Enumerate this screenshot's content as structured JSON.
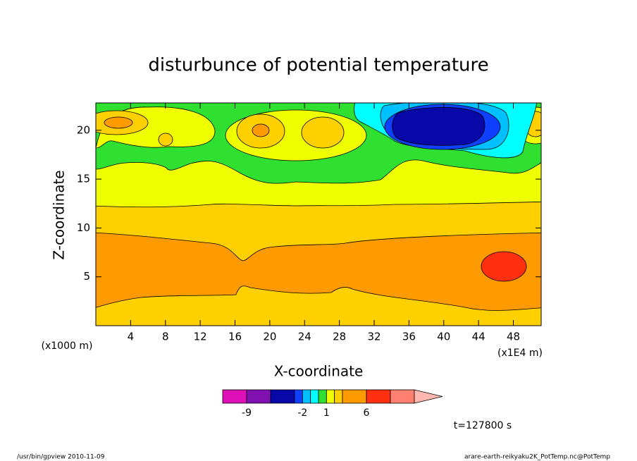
{
  "chart_data": {
    "type": "contour",
    "title": "disturbunce of potential temperature",
    "x_label": "X-coordinate",
    "y_label": "Z-coordinate",
    "x_unit_left": "(x1000 m)",
    "x_unit_right": "(x1E4 m)",
    "xlim": [
      0,
      51.2
    ],
    "xticks": [
      4,
      8,
      12,
      16,
      20,
      24,
      28,
      32,
      36,
      40,
      44,
      48
    ],
    "ylim": [
      0,
      22.8
    ],
    "yticks": [
      5,
      10,
      15,
      20
    ],
    "colorbar": {
      "levels": [
        -12,
        -9,
        -6,
        -3,
        -2,
        -1,
        0,
        1,
        2,
        3,
        6,
        9,
        12
      ],
      "colors": [
        "#e010b8",
        "#8010b0",
        "#0808a8",
        "#1040ff",
        "#00c0ff",
        "#00ffff",
        "#30e030",
        "#f0ff00",
        "#ffd000",
        "#ff9a00",
        "#ff3010",
        "#ff8070"
      ],
      "extend_color": "#ffb8b0",
      "ticks": [
        -9,
        -2,
        1,
        6
      ]
    },
    "time_label": "t=127800 s",
    "footer_left": "/usr/bin/gpview   2010-11-09",
    "footer_right": "arare-earth-reikyaku2K_PotTemp.nc@PotTemp"
  }
}
